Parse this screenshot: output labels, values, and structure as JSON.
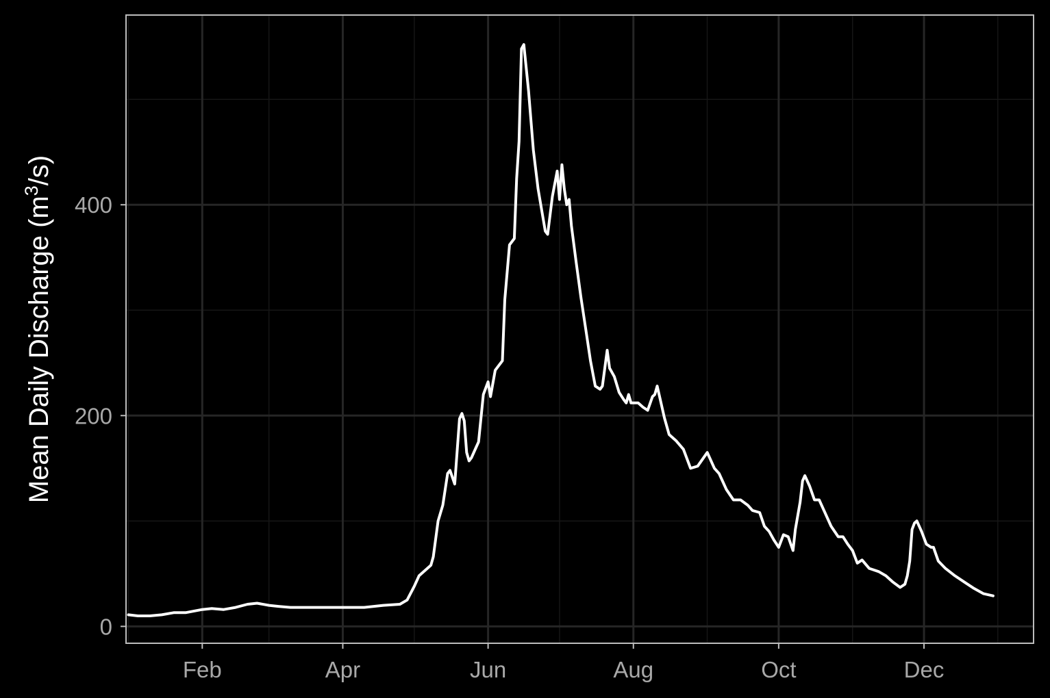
{
  "colors": {
    "background": "#000000",
    "panel_border": "#bdbdbd",
    "grid_major": "#262626",
    "grid_minor": "#161616",
    "tick_text": "#a8a8a8",
    "line": "#ffffff"
  },
  "chart_data": {
    "type": "line",
    "title": "",
    "xlabel": "",
    "ylabel": {
      "prefix": "Mean Daily Discharge (m",
      "superscript": "3",
      "suffix": "/s)"
    },
    "xlim": [
      "2016-12-31",
      "2018-01-16"
    ],
    "ylim": [
      -16,
      580
    ],
    "x_ticks": [
      {
        "label": "Feb",
        "date": "2017-02-01"
      },
      {
        "label": "Apr",
        "date": "2017-04-01"
      },
      {
        "label": "Jun",
        "date": "2017-06-01"
      },
      {
        "label": "Aug",
        "date": "2017-08-01"
      },
      {
        "label": "Oct",
        "date": "2017-10-01"
      },
      {
        "label": "Dec",
        "date": "2017-12-01"
      }
    ],
    "x_minor_ticks": [
      "2017-01-01",
      "2017-03-01",
      "2017-05-01",
      "2017-07-01",
      "2017-09-01",
      "2017-11-01",
      "2018-01-01"
    ],
    "y_ticks": [
      0,
      200,
      400
    ],
    "y_minor_ticks": [
      100,
      300,
      500
    ],
    "grid": true,
    "legend": "none",
    "series": [
      {
        "points": [
          [
            "2017-01-01",
            11
          ],
          [
            "2017-01-05",
            10
          ],
          [
            "2017-01-10",
            10
          ],
          [
            "2017-01-15",
            11
          ],
          [
            "2017-01-20",
            13
          ],
          [
            "2017-01-25",
            13
          ],
          [
            "2017-02-01",
            16
          ],
          [
            "2017-02-05",
            17
          ],
          [
            "2017-02-10",
            16
          ],
          [
            "2017-02-15",
            18
          ],
          [
            "2017-02-20",
            21
          ],
          [
            "2017-02-24",
            22
          ],
          [
            "2017-03-01",
            20
          ],
          [
            "2017-03-05",
            19
          ],
          [
            "2017-03-10",
            18
          ],
          [
            "2017-03-20",
            18
          ],
          [
            "2017-04-01",
            18
          ],
          [
            "2017-04-10",
            18
          ],
          [
            "2017-04-18",
            20
          ],
          [
            "2017-04-25",
            21
          ],
          [
            "2017-04-28",
            25
          ],
          [
            "2017-05-01",
            38
          ],
          [
            "2017-05-03",
            48
          ],
          [
            "2017-05-05",
            52
          ],
          [
            "2017-05-08",
            58
          ],
          [
            "2017-05-09",
            66
          ],
          [
            "2017-05-11",
            100
          ],
          [
            "2017-05-13",
            115
          ],
          [
            "2017-05-15",
            145
          ],
          [
            "2017-05-16",
            148
          ],
          [
            "2017-05-18",
            135
          ],
          [
            "2017-05-20",
            197
          ],
          [
            "2017-05-21",
            202
          ],
          [
            "2017-05-22",
            195
          ],
          [
            "2017-05-23",
            165
          ],
          [
            "2017-05-24",
            157
          ],
          [
            "2017-05-25",
            160
          ],
          [
            "2017-05-27",
            170
          ],
          [
            "2017-05-28",
            175
          ],
          [
            "2017-05-30",
            220
          ],
          [
            "2017-06-01",
            232
          ],
          [
            "2017-06-02",
            218
          ],
          [
            "2017-06-04",
            243
          ],
          [
            "2017-06-07",
            252
          ],
          [
            "2017-06-08",
            310
          ],
          [
            "2017-06-10",
            362
          ],
          [
            "2017-06-12",
            368
          ],
          [
            "2017-06-13",
            425
          ],
          [
            "2017-06-14",
            460
          ],
          [
            "2017-06-15",
            548
          ],
          [
            "2017-06-16",
            552
          ],
          [
            "2017-06-18",
            508
          ],
          [
            "2017-06-20",
            452
          ],
          [
            "2017-06-22",
            415
          ],
          [
            "2017-06-25",
            375
          ],
          [
            "2017-06-26",
            372
          ],
          [
            "2017-06-28",
            408
          ],
          [
            "2017-06-30",
            432
          ],
          [
            "2017-07-01",
            405
          ],
          [
            "2017-07-02",
            438
          ],
          [
            "2017-07-03",
            415
          ],
          [
            "2017-07-04",
            400
          ],
          [
            "2017-07-05",
            405
          ],
          [
            "2017-07-06",
            380
          ],
          [
            "2017-07-08",
            345
          ],
          [
            "2017-07-10",
            312
          ],
          [
            "2017-07-12",
            282
          ],
          [
            "2017-07-14",
            252
          ],
          [
            "2017-07-16",
            228
          ],
          [
            "2017-07-18",
            225
          ],
          [
            "2017-07-19",
            228
          ],
          [
            "2017-07-21",
            262
          ],
          [
            "2017-07-22",
            245
          ],
          [
            "2017-07-24",
            237
          ],
          [
            "2017-07-26",
            222
          ],
          [
            "2017-07-28",
            215
          ],
          [
            "2017-07-29",
            212
          ],
          [
            "2017-07-30",
            220
          ],
          [
            "2017-07-31",
            212
          ],
          [
            "2017-08-03",
            212
          ],
          [
            "2017-08-05",
            208
          ],
          [
            "2017-08-07",
            205
          ],
          [
            "2017-08-09",
            218
          ],
          [
            "2017-08-10",
            220
          ],
          [
            "2017-08-11",
            228
          ],
          [
            "2017-08-12",
            218
          ],
          [
            "2017-08-14",
            198
          ],
          [
            "2017-08-16",
            182
          ],
          [
            "2017-08-19",
            176
          ],
          [
            "2017-08-22",
            168
          ],
          [
            "2017-08-25",
            150
          ],
          [
            "2017-08-28",
            152
          ],
          [
            "2017-09-01",
            165
          ],
          [
            "2017-09-04",
            150
          ],
          [
            "2017-09-06",
            145
          ],
          [
            "2017-09-09",
            130
          ],
          [
            "2017-09-12",
            120
          ],
          [
            "2017-09-15",
            120
          ],
          [
            "2017-09-18",
            115
          ],
          [
            "2017-09-20",
            110
          ],
          [
            "2017-09-23",
            108
          ],
          [
            "2017-09-25",
            95
          ],
          [
            "2017-09-27",
            90
          ],
          [
            "2017-09-29",
            82
          ],
          [
            "2017-10-01",
            75
          ],
          [
            "2017-10-03",
            87
          ],
          [
            "2017-10-05",
            85
          ],
          [
            "2017-10-07",
            72
          ],
          [
            "2017-10-08",
            92
          ],
          [
            "2017-10-10",
            118
          ],
          [
            "2017-10-11",
            138
          ],
          [
            "2017-10-12",
            143
          ],
          [
            "2017-10-14",
            133
          ],
          [
            "2017-10-16",
            120
          ],
          [
            "2017-10-18",
            120
          ],
          [
            "2017-10-20",
            110
          ],
          [
            "2017-10-23",
            95
          ],
          [
            "2017-10-26",
            85
          ],
          [
            "2017-10-28",
            85
          ],
          [
            "2017-10-30",
            78
          ],
          [
            "2017-11-01",
            72
          ],
          [
            "2017-11-03",
            60
          ],
          [
            "2017-11-05",
            63
          ],
          [
            "2017-11-08",
            55
          ],
          [
            "2017-11-12",
            52
          ],
          [
            "2017-11-15",
            48
          ],
          [
            "2017-11-18",
            42
          ],
          [
            "2017-11-21",
            37
          ],
          [
            "2017-11-23",
            40
          ],
          [
            "2017-11-24",
            48
          ],
          [
            "2017-11-25",
            62
          ],
          [
            "2017-11-26",
            92
          ],
          [
            "2017-11-27",
            98
          ],
          [
            "2017-11-28",
            100
          ],
          [
            "2017-11-30",
            90
          ],
          [
            "2017-12-02",
            78
          ],
          [
            "2017-12-04",
            75
          ],
          [
            "2017-12-05",
            75
          ],
          [
            "2017-12-07",
            62
          ],
          [
            "2017-12-10",
            55
          ],
          [
            "2017-12-14",
            48
          ],
          [
            "2017-12-18",
            42
          ],
          [
            "2017-12-22",
            36
          ],
          [
            "2017-12-26",
            31
          ],
          [
            "2017-12-30",
            29
          ]
        ]
      }
    ]
  }
}
